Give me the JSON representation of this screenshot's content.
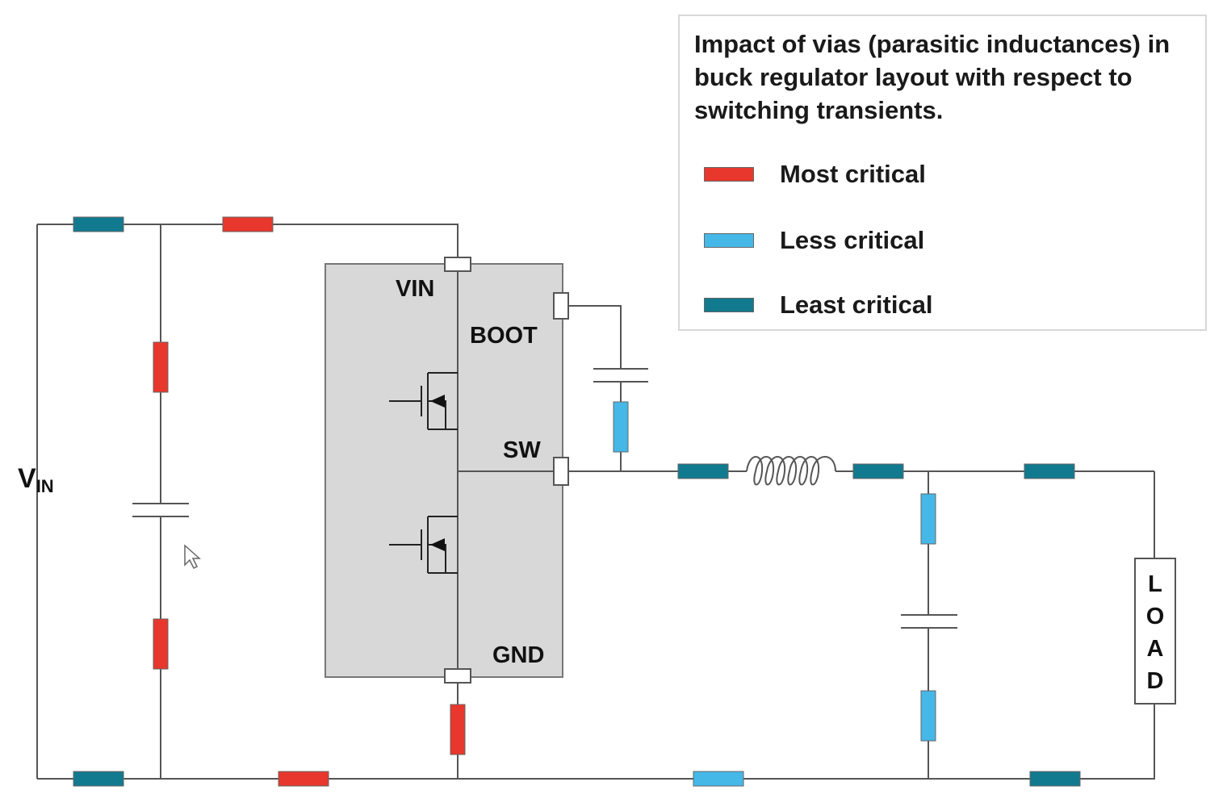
{
  "colors": {
    "most": "#e8372c",
    "less": "#45b8e8",
    "least": "#117a8f",
    "chip": "#d8d8d8"
  },
  "legend": {
    "title": "Impact of vias (parasitic inductances) in buck regulator layout with respect to switching transients.",
    "items": [
      {
        "label": "Most critical",
        "level": "most"
      },
      {
        "label": "Less critical",
        "level": "less"
      },
      {
        "label": "Least critical",
        "level": "least"
      }
    ]
  },
  "labels": {
    "vin_main": "V",
    "vin_sub": "IN",
    "pin_vin": "VIN",
    "pin_boot": "BOOT",
    "pin_sw": "SW",
    "pin_gnd": "GND",
    "load": "LOAD"
  }
}
